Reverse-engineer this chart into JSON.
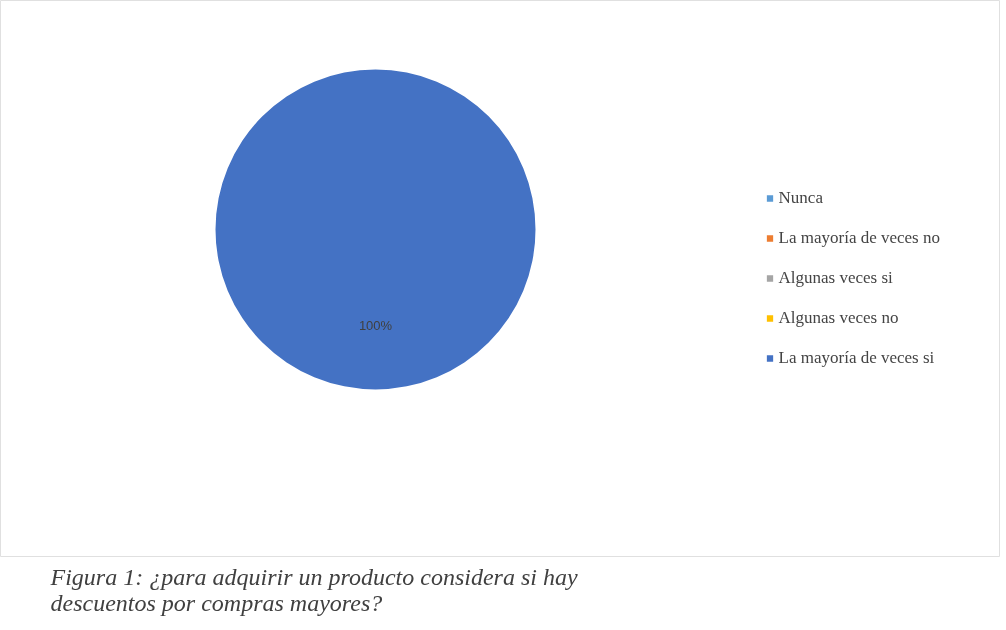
{
  "chart_data": {
    "type": "pie",
    "categories": [
      "Nunca",
      "La mayoría de veces no",
      "Algunas veces si",
      "Algunas veces no",
      "La mayoría de veces si"
    ],
    "values": [
      0,
      0,
      0,
      0,
      100
    ],
    "colors": [
      "#5b9bd5",
      "#ed7d31",
      "#a5a5a5",
      "#ffc000",
      "#4472c4"
    ],
    "value_labels": [
      null,
      null,
      null,
      null,
      "100%"
    ],
    "legend": "right",
    "annotations": [
      "Figura 1: ¿para adquirir un producto considera si hay descuentos por compras mayores?"
    ]
  }
}
